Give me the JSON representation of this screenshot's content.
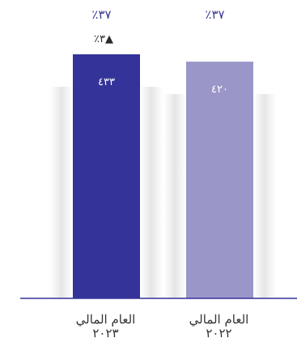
{
  "chart_data": {
    "type": "bar",
    "categories": [
      "العام المالي ٢٠٢٣",
      "العام المالي ٢٠٢٢"
    ],
    "category_lines": [
      [
        "العام المالي",
        "٢٠٢٣"
      ],
      [
        "العام المالي",
        "٢٠٢٢"
      ]
    ],
    "values": [
      433,
      420
    ],
    "value_labels": [
      "٤٣٣",
      "٤٢٠"
    ],
    "top_labels": [
      "٪٣٧",
      "٪٣٧"
    ],
    "growth_label": "٪٣▲",
    "colors": [
      "#333399",
      "#9b96c8"
    ],
    "baseline_color": "#333399",
    "ylim": [
      0,
      433
    ]
  }
}
